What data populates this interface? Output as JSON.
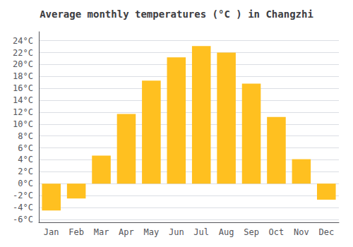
{
  "chart_data": {
    "type": "bar",
    "title": "Average monthly temperatures (°C ) in Changzhi",
    "categories": [
      "Jan",
      "Feb",
      "Mar",
      "Apr",
      "May",
      "Jun",
      "Jul",
      "Aug",
      "Sep",
      "Oct",
      "Nov",
      "Dec"
    ],
    "values": [
      -4.5,
      -2.5,
      4.7,
      11.7,
      17.3,
      21.2,
      23.1,
      22.0,
      16.8,
      11.2,
      4.1,
      -2.7
    ],
    "color": "#FFC020",
    "ylim": [
      -6.5,
      25.5
    ],
    "yticks": [
      {
        "value": -6,
        "label": "-6°C"
      },
      {
        "value": -4,
        "label": "-4°C"
      },
      {
        "value": -2,
        "label": "-2°C"
      },
      {
        "value": 0,
        "label": "0°C"
      },
      {
        "value": 2,
        "label": "2°C"
      },
      {
        "value": 4,
        "label": "4°C"
      },
      {
        "value": 6,
        "label": "6°C"
      },
      {
        "value": 8,
        "label": "8°C"
      },
      {
        "value": 10,
        "label": "10°C"
      },
      {
        "value": 12,
        "label": "12°C"
      },
      {
        "value": 14,
        "label": "14°C"
      },
      {
        "value": 16,
        "label": "16°C"
      },
      {
        "value": 18,
        "label": "18°C"
      },
      {
        "value": 20,
        "label": "20°C"
      },
      {
        "value": 22,
        "label": "22°C"
      },
      {
        "value": 24,
        "label": "24°C"
      }
    ],
    "grid": true
  }
}
